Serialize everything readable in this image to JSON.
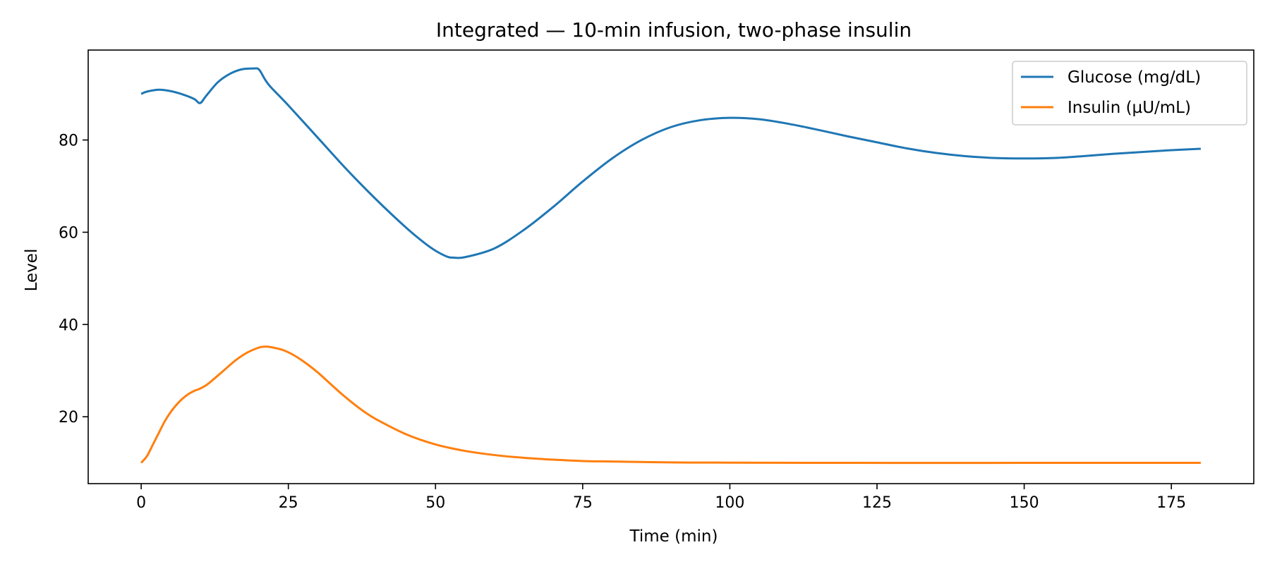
{
  "chart_data": {
    "type": "line",
    "title": "Integrated — 10-min infusion, two-phase insulin",
    "xlabel": "Time (min)",
    "ylabel": "Level",
    "xlim": [
      -9,
      189
    ],
    "ylim": [
      5.5,
      99.5
    ],
    "xticks": [
      0,
      25,
      50,
      75,
      100,
      125,
      150,
      175
    ],
    "yticks": [
      20,
      40,
      60,
      80
    ],
    "grid": false,
    "legend_position": "top-right",
    "series": [
      {
        "name": "Glucose (mg/dL)",
        "color": "#1f77b4",
        "points": [
          [
            0,
            90.0
          ],
          [
            1,
            90.5
          ],
          [
            3,
            90.9
          ],
          [
            5,
            90.6
          ],
          [
            7,
            89.9
          ],
          [
            9,
            88.9
          ],
          [
            10,
            88.0
          ],
          [
            11,
            89.5
          ],
          [
            13,
            92.5
          ],
          [
            15,
            94.3
          ],
          [
            17,
            95.3
          ],
          [
            19,
            95.5
          ],
          [
            20,
            95.3
          ],
          [
            21,
            93.2
          ],
          [
            22,
            91.5
          ],
          [
            25,
            87.5
          ],
          [
            30,
            80.5
          ],
          [
            35,
            73.5
          ],
          [
            40,
            67.0
          ],
          [
            45,
            61.0
          ],
          [
            48,
            57.8
          ],
          [
            50,
            56.0
          ],
          [
            52,
            54.7
          ],
          [
            53,
            54.5
          ],
          [
            55,
            54.6
          ],
          [
            60,
            56.5
          ],
          [
            65,
            60.5
          ],
          [
            70,
            65.5
          ],
          [
            75,
            71.0
          ],
          [
            80,
            76.0
          ],
          [
            85,
            80.0
          ],
          [
            90,
            82.8
          ],
          [
            95,
            84.3
          ],
          [
            100,
            84.8
          ],
          [
            105,
            84.5
          ],
          [
            110,
            83.5
          ],
          [
            115,
            82.2
          ],
          [
            120,
            80.8
          ],
          [
            125,
            79.5
          ],
          [
            130,
            78.2
          ],
          [
            135,
            77.2
          ],
          [
            140,
            76.5
          ],
          [
            145,
            76.1
          ],
          [
            150,
            76.0
          ],
          [
            155,
            76.1
          ],
          [
            160,
            76.5
          ],
          [
            165,
            77.0
          ],
          [
            170,
            77.4
          ],
          [
            175,
            77.8
          ],
          [
            180,
            78.1
          ]
        ]
      },
      {
        "name": "Insulin (µU/mL)",
        "color": "#ff7f0e",
        "points": [
          [
            0,
            10.0
          ],
          [
            1,
            11.5
          ],
          [
            2,
            14.0
          ],
          [
            3,
            16.5
          ],
          [
            4,
            19.0
          ],
          [
            5,
            21.0
          ],
          [
            6,
            22.6
          ],
          [
            7,
            23.9
          ],
          [
            8,
            24.9
          ],
          [
            9,
            25.6
          ],
          [
            10,
            26.1
          ],
          [
            11,
            26.8
          ],
          [
            12,
            27.8
          ],
          [
            14,
            30.0
          ],
          [
            16,
            32.2
          ],
          [
            18,
            33.9
          ],
          [
            20,
            35.0
          ],
          [
            21,
            35.2
          ],
          [
            22,
            35.1
          ],
          [
            24,
            34.5
          ],
          [
            26,
            33.3
          ],
          [
            28,
            31.6
          ],
          [
            30,
            29.6
          ],
          [
            32,
            27.3
          ],
          [
            34,
            25.0
          ],
          [
            36,
            22.9
          ],
          [
            38,
            21.0
          ],
          [
            40,
            19.4
          ],
          [
            45,
            16.2
          ],
          [
            50,
            14.0
          ],
          [
            55,
            12.6
          ],
          [
            60,
            11.7
          ],
          [
            65,
            11.1
          ],
          [
            70,
            10.7
          ],
          [
            75,
            10.4
          ],
          [
            80,
            10.3
          ],
          [
            90,
            10.1
          ],
          [
            100,
            10.05
          ],
          [
            120,
            10.0
          ],
          [
            150,
            10.0
          ],
          [
            180,
            10.0
          ]
        ]
      }
    ]
  }
}
